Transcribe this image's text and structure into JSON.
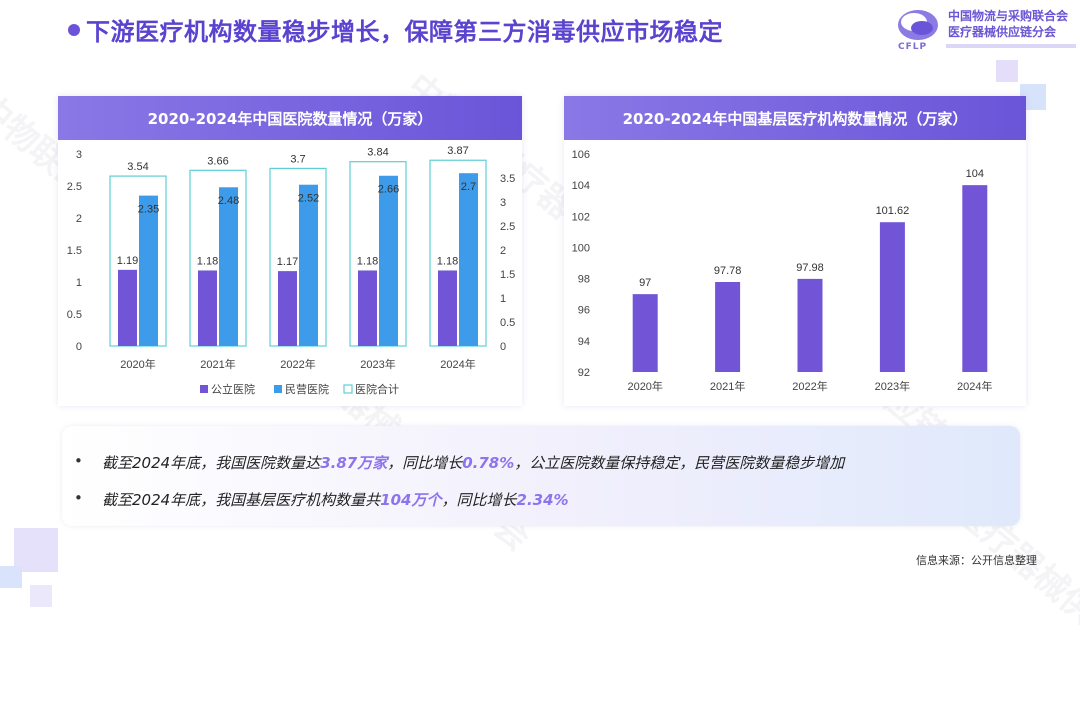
{
  "header": {
    "title": "下游医疗机构数量稳步增长，保障第三方消毒供应市场稳定",
    "org_line1": "中国物流与采购联合会",
    "org_line2": "医疗器械供应链分会",
    "logo_text": "CFLP"
  },
  "colors": {
    "accent": "#6a55d8",
    "public": "#7155d6",
    "private": "#3d9bea",
    "total": "#5ccfd6",
    "bar": "#7155d6",
    "highlight": "#8d73ec"
  },
  "chart_data": [
    {
      "type": "bar",
      "title": "2020-2024年中国医院数量情况（万家）",
      "categories": [
        "2020年",
        "2021年",
        "2022年",
        "2023年",
        "2024年"
      ],
      "series": [
        {
          "name": "公立医院",
          "values": [
            1.19,
            1.18,
            1.17,
            1.18,
            1.18
          ],
          "axis": "left"
        },
        {
          "name": "民营医院",
          "values": [
            2.35,
            2.48,
            2.52,
            2.66,
            2.7
          ],
          "axis": "left"
        },
        {
          "name": "医院合计",
          "values": [
            3.54,
            3.66,
            3.7,
            3.84,
            3.87
          ],
          "axis": "right"
        }
      ],
      "y_left": {
        "min": 0,
        "max": 3,
        "ticks": [
          "0",
          "0.5",
          "1",
          "1.5",
          "2",
          "2.5",
          "3"
        ]
      },
      "y_right": {
        "min": 0,
        "max": 4,
        "ticks": [
          "0",
          "0.5",
          "1",
          "1.5",
          "2",
          "2.5",
          "3",
          "3.5"
        ]
      },
      "legend": [
        "公立医院",
        "民营医院",
        "医院合计"
      ],
      "legend_position": "bottom"
    },
    {
      "type": "bar",
      "title": "2020-2024年中国基层医疗机构数量情况（万家）",
      "categories": [
        "2020年",
        "2021年",
        "2022年",
        "2023年",
        "2024年"
      ],
      "values": [
        97,
        97.78,
        97.98,
        101.62,
        104
      ],
      "labels": [
        "97",
        "97.78",
        "97.98",
        "101.62",
        "104"
      ],
      "y": {
        "min": 92,
        "max": 106,
        "ticks": [
          "92",
          "94",
          "96",
          "98",
          "100",
          "102",
          "104",
          "106"
        ]
      }
    }
  ],
  "notes": {
    "bullet": "•",
    "n1_a": "截至2024年底，我国医院数量达",
    "n1_b": "3.87万家",
    "n1_c": "，同比增长",
    "n1_d": "0.78%",
    "n1_e": "，公立医院数量保持稳定，民营医院数量稳步增加",
    "n2_a": "截至2024年底，我国基层医疗机构数量共",
    "n2_b": "104万个",
    "n2_c": "，同比增长",
    "n2_d": "2.34%"
  },
  "source": "信息来源：公开信息整理",
  "watermark": "中物联医疗器械供应链分会"
}
